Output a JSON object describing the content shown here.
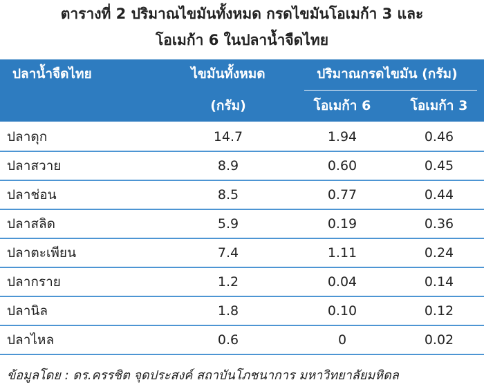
{
  "title": [
    "ตารางที่ 2 ปริมาณไขมันทั้งหมด กรดไขมันโอเมก้า 3 และ",
    "โอเมก้า 6 ในปลาน้ำจืดไทย"
  ],
  "header": {
    "fish": "ปลาน้ำจืดไทย",
    "total": "ไขมันทั้งหมด",
    "total_unit": "(กรัม)",
    "fatty_acid": "ปริมาณกรดไขมัน (กรัม)",
    "omega6": "โอเมก้า 6",
    "omega3": "โอเมก้า 3"
  },
  "table": {
    "rows": [
      [
        "ปลาดุก",
        "14.7",
        "1.94",
        "0.46"
      ],
      [
        "ปลาสวาย",
        "8.9",
        "0.60",
        "0.45"
      ],
      [
        "ปลาช่อน",
        "8.5",
        "0.77",
        "0.44"
      ],
      [
        "ปลาสลิด",
        "5.9",
        "0.19",
        "0.36"
      ],
      [
        "ปลาตะเพียน",
        "7.4",
        "1.11",
        "0.24"
      ],
      [
        "ปลากราย",
        "1.2",
        "0.04",
        "0.14"
      ],
      [
        "ปลานิล",
        "1.8",
        "0.10",
        "0.12"
      ],
      [
        "ปลาไหล",
        "0.6",
        "0",
        "0.02"
      ]
    ]
  },
  "source": "ข้อมูลโดย : ดร.ครรชิต จุดประสงค์ สถาบันโภชนาการ มหาวิทยาลัยมหิดล"
}
